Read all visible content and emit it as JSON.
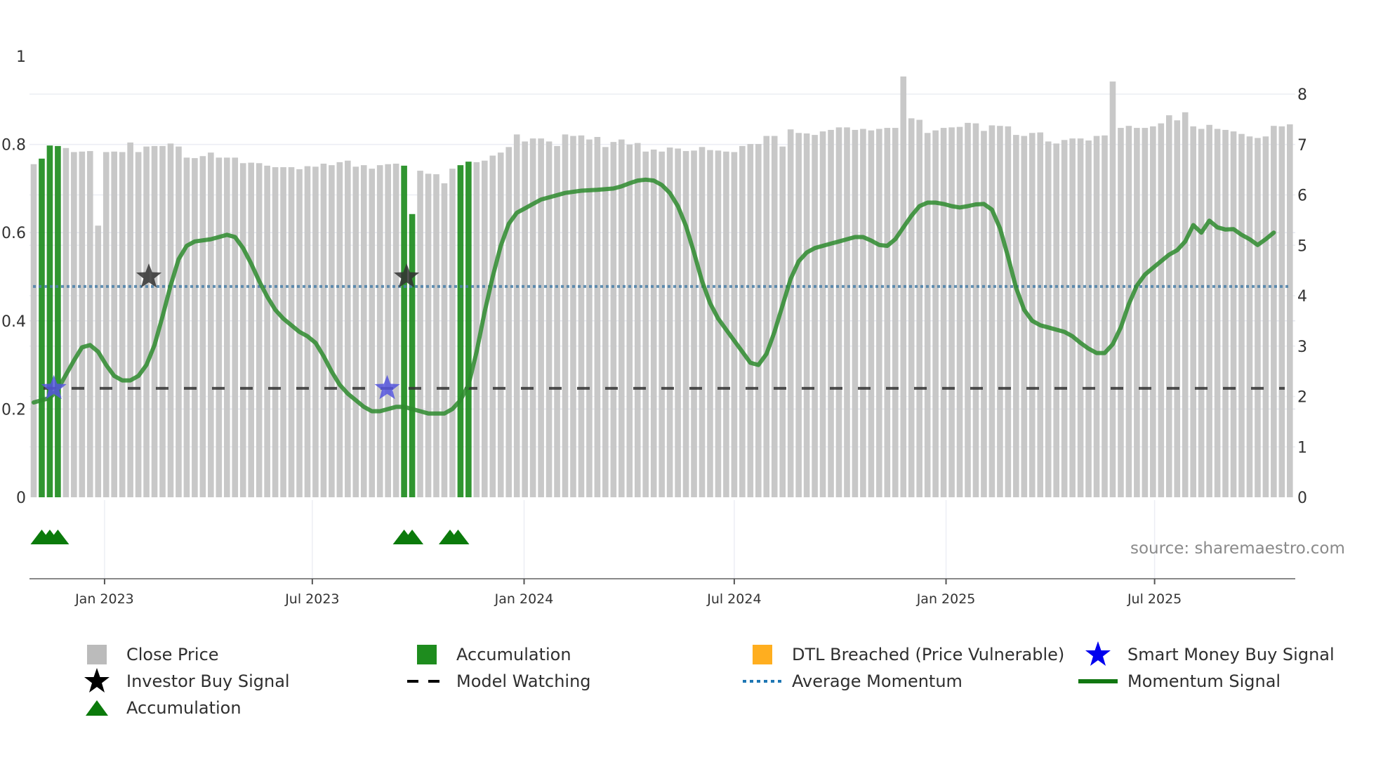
{
  "chart_data": {
    "type": "bar",
    "title": "",
    "xlabel": "",
    "ylabel_left": "",
    "ylabel_right": "",
    "left_axis": {
      "ticks": [
        "0",
        "0.2",
        "0.4",
        "0.6",
        "0.8",
        "1"
      ],
      "range": [
        0,
        1
      ]
    },
    "right_axis": {
      "ticks": [
        "0",
        "1",
        "2",
        "3",
        "4",
        "5",
        "6",
        "7",
        "8"
      ],
      "range": [
        0,
        8.9
      ]
    },
    "x_ticks": [
      {
        "label": "Jan 2023",
        "index": 8.8
      },
      {
        "label": "Jul 2023",
        "index": 34.6
      },
      {
        "label": "Jan 2024",
        "index": 60.9
      },
      {
        "label": "Jul 2024",
        "index": 87.0
      },
      {
        "label": "Jan 2025",
        "index": 113.3
      },
      {
        "label": "Jul 2025",
        "index": 139.2
      }
    ],
    "grid": true,
    "legend_position": "bottom",
    "series": [
      {
        "name": "Close Price",
        "kind": "bar",
        "axis": "right",
        "color": "#c8c8c8",
        "values": [
          6.61,
          6.72,
          6.98,
          6.97,
          6.93,
          6.85,
          6.86,
          6.87,
          5.39,
          6.85,
          6.86,
          6.85,
          7.04,
          6.85,
          6.96,
          6.97,
          6.97,
          7.02,
          6.96,
          6.74,
          6.73,
          6.77,
          6.84,
          6.74,
          6.74,
          6.74,
          6.63,
          6.64,
          6.63,
          6.58,
          6.55,
          6.55,
          6.55,
          6.51,
          6.57,
          6.56,
          6.62,
          6.59,
          6.65,
          6.68,
          6.56,
          6.59,
          6.52,
          6.59,
          6.61,
          6.62,
          6.58,
          5.62,
          6.48,
          6.42,
          6.41,
          6.23,
          6.52,
          6.59,
          6.66,
          6.65,
          6.68,
          6.78,
          6.84,
          6.95,
          7.2,
          7.06,
          7.12,
          7.12,
          7.06,
          6.97,
          7.2,
          7.17,
          7.18,
          7.1,
          7.15,
          6.95,
          7.05,
          7.1,
          7.0,
          7.03,
          6.86,
          6.9,
          6.86,
          6.94,
          6.92,
          6.87,
          6.88,
          6.95,
          6.89,
          6.88,
          6.86,
          6.85,
          6.97,
          7.01,
          7.01,
          7.17,
          7.17,
          6.96,
          7.3,
          7.23,
          7.22,
          7.19,
          7.26,
          7.29,
          7.34,
          7.34,
          7.29,
          7.31,
          7.28,
          7.31,
          7.33,
          7.33,
          8.35,
          7.52,
          7.49,
          7.23,
          7.28,
          7.33,
          7.34,
          7.35,
          7.43,
          7.42,
          7.27,
          7.38,
          7.37,
          7.36,
          7.19,
          7.17,
          7.23,
          7.24,
          7.06,
          7.02,
          7.09,
          7.12,
          7.12,
          7.08,
          7.17,
          7.18,
          8.25,
          7.33,
          7.37,
          7.33,
          7.33,
          7.36,
          7.42,
          7.58,
          7.48,
          7.64,
          7.36,
          7.31,
          7.39,
          7.31,
          7.29,
          7.26,
          7.21,
          7.16,
          7.13,
          7.16,
          7.37,
          7.36,
          7.4
        ]
      },
      {
        "name": "Accumulation",
        "kind": "bar-highlight",
        "axis": "right",
        "color": "#1e8c1e",
        "indices": [
          1,
          2,
          3,
          46,
          47,
          53,
          54
        ]
      },
      {
        "name": "DTL Breached (Price Vulnerable)",
        "kind": "bar-highlight",
        "axis": "right",
        "color": "#ffa500",
        "indices": []
      },
      {
        "name": "Momentum Signal",
        "kind": "line",
        "axis": "left",
        "color": "#2e8b2e",
        "points": [
          [
            0,
            0.215
          ],
          [
            2,
            0.225
          ],
          [
            3,
            0.245
          ],
          [
            5,
            0.31
          ],
          [
            6,
            0.34
          ],
          [
            7,
            0.345
          ],
          [
            8,
            0.33
          ],
          [
            9,
            0.3
          ],
          [
            10,
            0.275
          ],
          [
            11,
            0.265
          ],
          [
            12,
            0.265
          ],
          [
            13,
            0.275
          ],
          [
            14,
            0.3
          ],
          [
            15,
            0.345
          ],
          [
            16,
            0.41
          ],
          [
            17,
            0.48
          ],
          [
            18,
            0.54
          ],
          [
            19,
            0.57
          ],
          [
            20,
            0.58
          ],
          [
            22,
            0.585
          ],
          [
            23,
            0.59
          ],
          [
            24,
            0.595
          ],
          [
            25,
            0.59
          ],
          [
            26,
            0.565
          ],
          [
            27,
            0.53
          ],
          [
            28,
            0.49
          ],
          [
            29,
            0.455
          ],
          [
            30,
            0.425
          ],
          [
            31,
            0.405
          ],
          [
            32,
            0.39
          ],
          [
            33,
            0.375
          ],
          [
            34,
            0.365
          ],
          [
            35,
            0.35
          ],
          [
            36,
            0.32
          ],
          [
            37,
            0.285
          ],
          [
            38,
            0.255
          ],
          [
            39,
            0.235
          ],
          [
            40,
            0.22
          ],
          [
            41,
            0.205
          ],
          [
            42,
            0.195
          ],
          [
            43,
            0.195
          ],
          [
            44,
            0.2
          ],
          [
            45,
            0.205
          ],
          [
            46,
            0.205
          ],
          [
            47,
            0.2
          ],
          [
            48,
            0.195
          ],
          [
            49,
            0.19
          ],
          [
            50,
            0.19
          ],
          [
            51,
            0.19
          ],
          [
            52,
            0.2
          ],
          [
            53,
            0.22
          ],
          [
            54,
            0.255
          ],
          [
            55,
            0.33
          ],
          [
            56,
            0.42
          ],
          [
            57,
            0.5
          ],
          [
            58,
            0.57
          ],
          [
            59,
            0.62
          ],
          [
            60,
            0.645
          ],
          [
            61,
            0.655
          ],
          [
            62,
            0.665
          ],
          [
            63,
            0.675
          ],
          [
            64,
            0.68
          ],
          [
            66,
            0.69
          ],
          [
            68,
            0.695
          ],
          [
            70,
            0.697
          ],
          [
            72,
            0.7
          ],
          [
            73,
            0.705
          ],
          [
            74,
            0.712
          ],
          [
            75,
            0.718
          ],
          [
            76,
            0.72
          ],
          [
            77,
            0.718
          ],
          [
            78,
            0.708
          ],
          [
            79,
            0.69
          ],
          [
            80,
            0.66
          ],
          [
            81,
            0.615
          ],
          [
            82,
            0.555
          ],
          [
            83,
            0.49
          ],
          [
            84,
            0.44
          ],
          [
            85,
            0.405
          ],
          [
            86,
            0.38
          ],
          [
            87,
            0.355
          ],
          [
            88,
            0.33
          ],
          [
            89,
            0.305
          ],
          [
            90,
            0.3
          ],
          [
            91,
            0.325
          ],
          [
            92,
            0.375
          ],
          [
            93,
            0.435
          ],
          [
            94,
            0.495
          ],
          [
            95,
            0.535
          ],
          [
            96,
            0.555
          ],
          [
            97,
            0.565
          ],
          [
            98,
            0.57
          ],
          [
            99,
            0.575
          ],
          [
            100,
            0.58
          ],
          [
            101,
            0.585
          ],
          [
            102,
            0.59
          ],
          [
            103,
            0.59
          ],
          [
            104,
            0.582
          ],
          [
            105,
            0.572
          ],
          [
            106,
            0.57
          ],
          [
            107,
            0.585
          ],
          [
            108,
            0.612
          ],
          [
            109,
            0.638
          ],
          [
            110,
            0.66
          ],
          [
            111,
            0.668
          ],
          [
            112,
            0.668
          ],
          [
            113,
            0.665
          ],
          [
            114,
            0.66
          ],
          [
            115,
            0.657
          ],
          [
            116,
            0.66
          ],
          [
            117,
            0.664
          ],
          [
            118,
            0.665
          ],
          [
            119,
            0.652
          ],
          [
            120,
            0.61
          ],
          [
            121,
            0.545
          ],
          [
            122,
            0.475
          ],
          [
            123,
            0.425
          ],
          [
            124,
            0.4
          ],
          [
            125,
            0.39
          ],
          [
            126,
            0.385
          ],
          [
            127,
            0.38
          ],
          [
            128,
            0.375
          ],
          [
            129,
            0.365
          ],
          [
            130,
            0.35
          ],
          [
            131,
            0.337
          ],
          [
            132,
            0.327
          ],
          [
            133,
            0.327
          ],
          [
            134,
            0.347
          ],
          [
            135,
            0.385
          ],
          [
            136,
            0.438
          ],
          [
            137,
            0.48
          ],
          [
            138,
            0.505
          ],
          [
            139,
            0.52
          ],
          [
            140,
            0.535
          ],
          [
            141,
            0.55
          ],
          [
            142,
            0.56
          ],
          [
            143,
            0.58
          ],
          [
            144,
            0.617
          ],
          [
            145,
            0.6
          ],
          [
            146,
            0.627
          ],
          [
            147,
            0.612
          ],
          [
            148,
            0.607
          ],
          [
            149,
            0.608
          ],
          [
            150,
            0.595
          ],
          [
            151,
            0.585
          ],
          [
            152,
            0.572
          ],
          [
            153,
            0.585
          ],
          [
            154,
            0.6
          ]
        ]
      },
      {
        "name": "Average Momentum",
        "kind": "hline",
        "axis": "left",
        "color": "#1f77b4",
        "value": 0.478
      },
      {
        "name": "Model Watching",
        "kind": "hline",
        "axis": "left",
        "color": "#222222",
        "value": 0.247
      },
      {
        "name": "Investor Buy Signal",
        "kind": "marker-star",
        "axis": "left",
        "color": "#333333",
        "points": [
          [
            14.3,
            0.5
          ],
          [
            46.3,
            0.5
          ]
        ]
      },
      {
        "name": "Smart Money Buy Signal",
        "kind": "marker-star",
        "axis": "left",
        "color": "#5555dd",
        "points": [
          [
            2.5,
            0.247
          ],
          [
            43.9,
            0.247
          ]
        ]
      },
      {
        "name": "Accumulation",
        "kind": "marker-triangle",
        "axis": "bottom-strip",
        "color": "#0b7a0b",
        "indices": [
          1,
          2,
          3,
          36.5,
          37.5,
          42.2,
          43.2
        ]
      }
    ]
  },
  "legend": {
    "items": [
      {
        "label": "Close Price",
        "symbol": "square",
        "color": "#bbbbbb"
      },
      {
        "label": "Accumulation",
        "symbol": "square",
        "color": "#1e8c1e"
      },
      {
        "label": "DTL Breached (Price Vulnerable)",
        "symbol": "square",
        "color": "#ffae1f"
      },
      {
        "label": "Smart Money Buy Signal",
        "symbol": "star",
        "color": "#0000ee"
      },
      {
        "label": "Investor Buy Signal",
        "symbol": "star",
        "color": "#000000"
      },
      {
        "label": "Model Watching",
        "symbol": "dash",
        "color": "#000000"
      },
      {
        "label": "Average Momentum",
        "symbol": "dot",
        "color": "#1f77b4"
      },
      {
        "label": "Momentum Signal",
        "symbol": "line",
        "color": "#117711"
      },
      {
        "label": "Accumulation",
        "symbol": "triangle",
        "color": "#0b7a0b"
      }
    ]
  },
  "source_text": "source: sharemaestro.com"
}
